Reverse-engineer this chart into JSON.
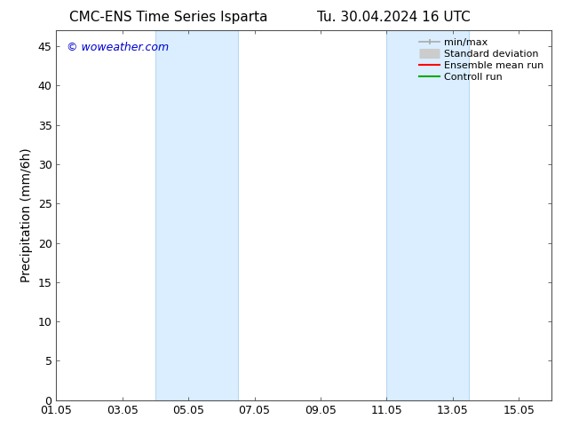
{
  "title_left": "CMC-ENS Time Series Isparta",
  "title_right": "Tu. 30.04.2024 16 UTC",
  "ylabel": "Precipitation (mm/6h)",
  "watermark": "© woweather.com",
  "watermark_color": "#0000cc",
  "ylim": [
    0,
    47
  ],
  "yticks": [
    0,
    5,
    10,
    15,
    20,
    25,
    30,
    35,
    40,
    45
  ],
  "xlim": [
    0,
    15
  ],
  "xtick_labels": [
    "01.05",
    "03.05",
    "05.05",
    "07.05",
    "09.05",
    "11.05",
    "13.05",
    "15.05"
  ],
  "xtick_positions": [
    0,
    2,
    4,
    6,
    8,
    10,
    12,
    14
  ],
  "background_color": "#ffffff",
  "shaded_bands": [
    {
      "x_start": 3.0,
      "x_end": 5.5,
      "color": "#daeeff"
    },
    {
      "x_start": 10.0,
      "x_end": 12.5,
      "color": "#daeeff"
    }
  ],
  "band_edge_color": "#b8d8f0",
  "band_edge_lw": 0.8,
  "legend_labels": [
    "min/max",
    "Standard deviation",
    "Ensemble mean run",
    "Controll run"
  ],
  "legend_colors": [
    "#aaaaaa",
    "#cccccc",
    "#ff0000",
    "#00aa00"
  ],
  "title_fontsize": 11,
  "ylabel_fontsize": 10,
  "tick_fontsize": 9,
  "legend_fontsize": 8,
  "watermark_fontsize": 9
}
